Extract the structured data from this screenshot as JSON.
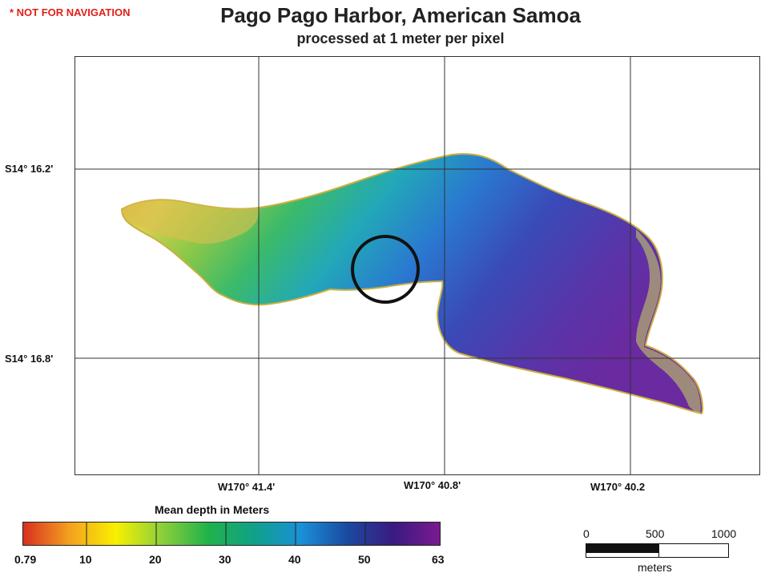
{
  "warning": "* NOT FOR NAVIGATION",
  "title": "Pago Pago Harbor, American Samoa",
  "subtitle": "processed at 1 meter per pixel",
  "map": {
    "latitude_labels": [
      "S14° 16.2'",
      "S14° 16.8'"
    ],
    "longitude_labels": [
      "W170° 41.4'",
      "W170° 40.8'",
      "W170° 40.2"
    ],
    "highlight": "circle-marker"
  },
  "legend": {
    "title": "Mean depth in Meters",
    "ticks": [
      "0.79",
      "10",
      "20",
      "30",
      "40",
      "50",
      "63"
    ],
    "colors": [
      "#d7301f",
      "#f4a020",
      "#f8f000",
      "#8ccf3a",
      "#20b24a",
      "#10a08a",
      "#1a90d8",
      "#1a4aa0",
      "#3a1a80",
      "#7a1a90"
    ]
  },
  "scalebar": {
    "labels": [
      "0",
      "500",
      "1000"
    ],
    "unit": "meters"
  }
}
